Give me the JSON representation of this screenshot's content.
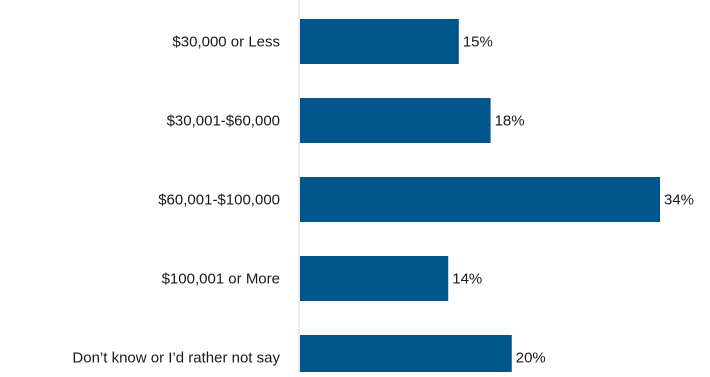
{
  "chart_data": {
    "type": "bar",
    "orientation": "horizontal",
    "categories": [
      "$30,000 or Less",
      "$30,001-$60,000",
      "$60,001-$100,000",
      "$100,001 or More",
      "Don’t know or I’d rather not say"
    ],
    "values": [
      15,
      18,
      34,
      14,
      20
    ],
    "value_labels": [
      "15%",
      "18%",
      "34%",
      "14%",
      "20%"
    ],
    "title": "",
    "xlabel": "",
    "ylabel": "",
    "xlim": [
      0,
      38
    ],
    "grid": false,
    "legend": "none",
    "bar_color": "#00558C",
    "axis_color": "#D9D9D9"
  }
}
